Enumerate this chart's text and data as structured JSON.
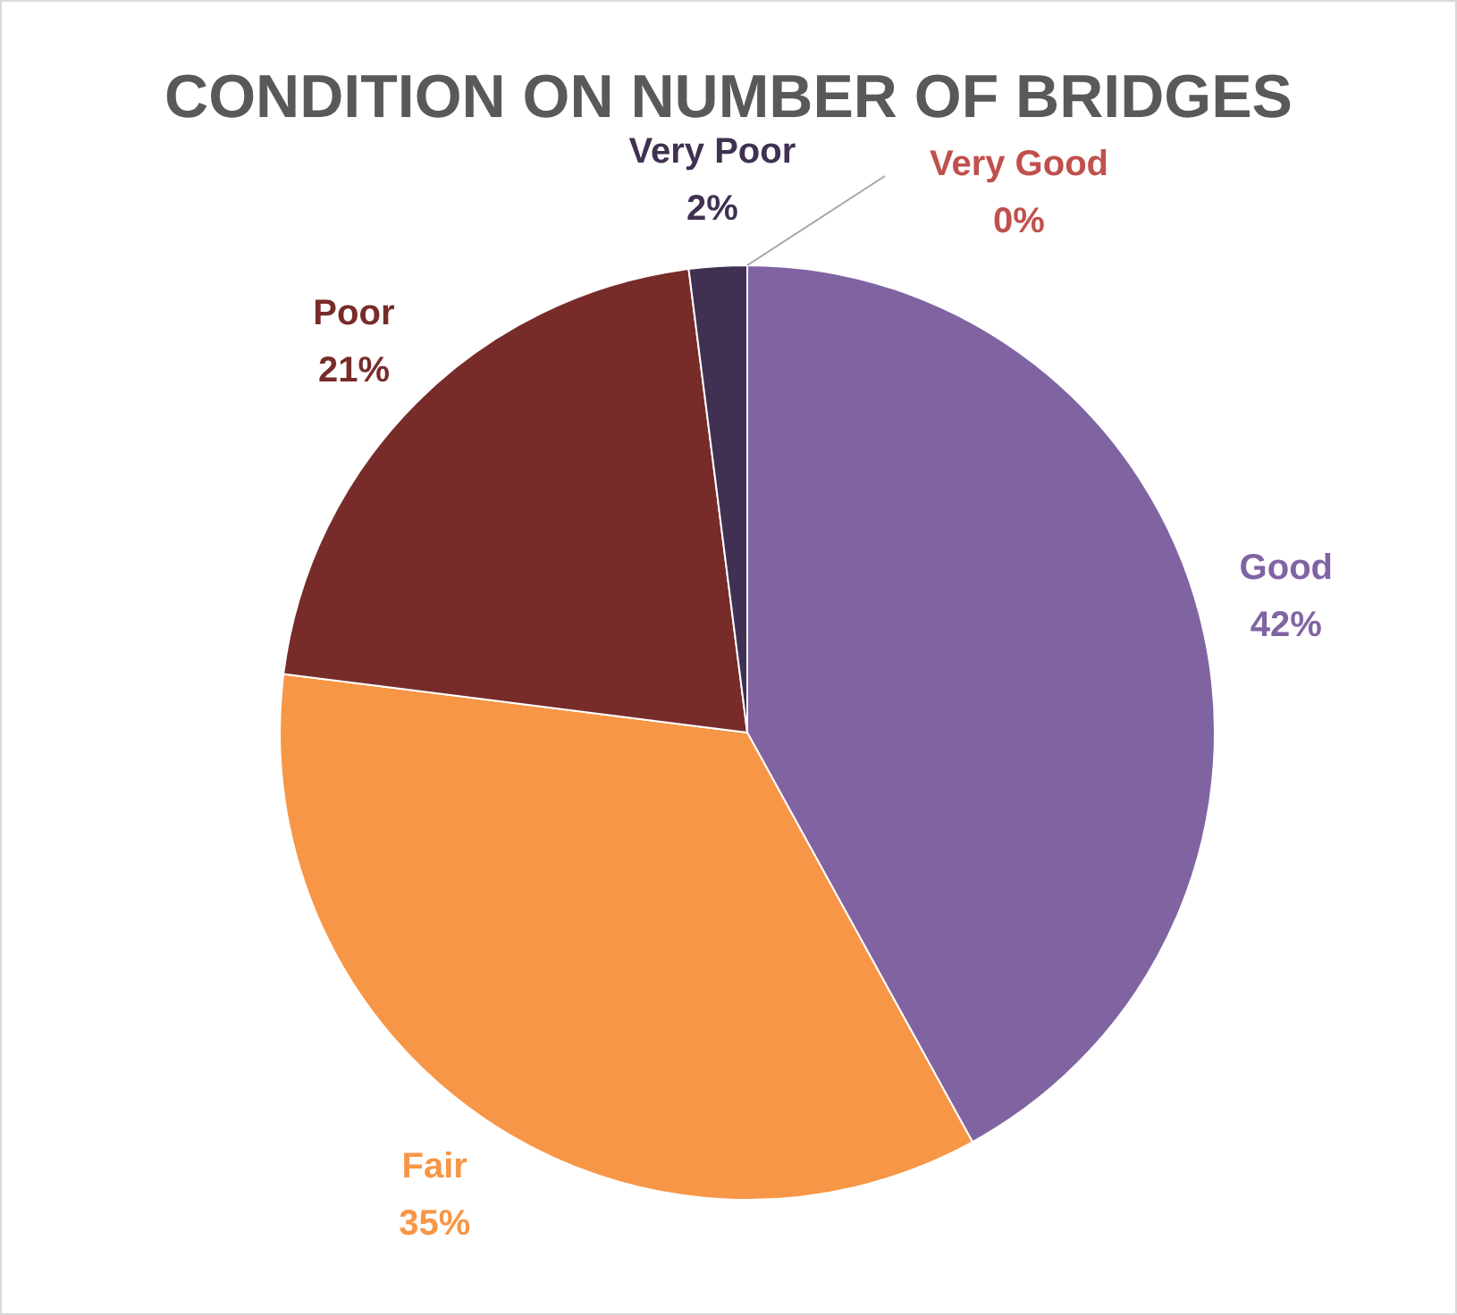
{
  "chart_data": {
    "type": "pie",
    "title": "CONDITION ON NUMBER OF BRIDGES",
    "categories": [
      "Very Good",
      "Good",
      "Fair",
      "Poor",
      "Very Poor"
    ],
    "values": [
      0,
      42,
      35,
      21,
      2
    ],
    "colors": [
      "#c0504d",
      "#8064a2",
      "#f79646",
      "#772c2a",
      "#403152"
    ],
    "value_labels": [
      "0%",
      "42%",
      "35%",
      "21%",
      "2%"
    ],
    "legend": false
  }
}
